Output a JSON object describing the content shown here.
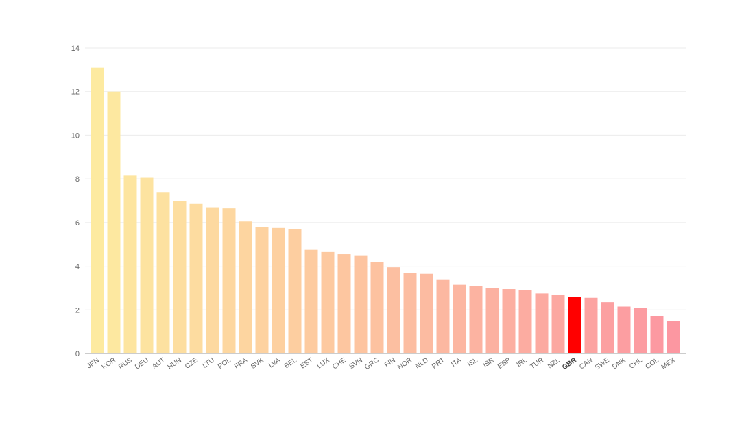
{
  "chart_data": {
    "type": "bar",
    "categories": [
      "JPN",
      "KOR",
      "RUS",
      "DEU",
      "AUT",
      "HUN",
      "CZE",
      "LTU",
      "POL",
      "FRA",
      "SVK",
      "LVA",
      "BEL",
      "EST",
      "LUX",
      "CHE",
      "SVN",
      "GRC",
      "FIN",
      "NOR",
      "NLD",
      "PRT",
      "ITA",
      "ISL",
      "ISR",
      "ESP",
      "IRL",
      "TUR",
      "NZL",
      "GBR",
      "CAN",
      "SWE",
      "DNK",
      "CHL",
      "COL",
      "MEX"
    ],
    "values": [
      13.1,
      12.0,
      8.15,
      8.05,
      7.4,
      7.0,
      6.85,
      6.7,
      6.65,
      6.05,
      5.8,
      5.75,
      5.7,
      4.75,
      4.65,
      4.55,
      4.5,
      4.2,
      3.95,
      3.7,
      3.65,
      3.4,
      3.15,
      3.1,
      3.0,
      2.95,
      2.9,
      2.75,
      2.7,
      2.6,
      2.55,
      2.35,
      2.15,
      2.1,
      1.7,
      1.5
    ],
    "highlight": "GBR",
    "ylim": [
      0,
      14
    ],
    "yticks": [
      "0",
      "2",
      "4",
      "6",
      "8",
      "10",
      "12",
      "14"
    ],
    "grid": true,
    "colors": {
      "low_end": "#fdeaa0",
      "high_end": "#fc97a1",
      "highlight": "#ff0000",
      "grid": "#ebebeb",
      "tick_text": "#666666",
      "axis": "#cccccc"
    },
    "title": "",
    "xlabel": "",
    "ylabel": ""
  }
}
